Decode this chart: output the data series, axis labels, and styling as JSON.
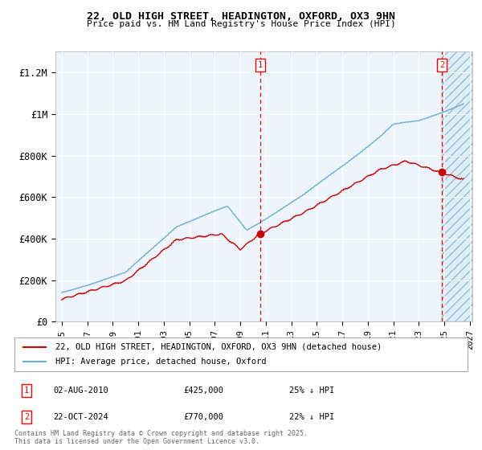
{
  "title": "22, OLD HIGH STREET, HEADINGTON, OXFORD, OX3 9HN",
  "subtitle": "Price paid vs. HM Land Registry's House Price Index (HPI)",
  "legend_line1": "22, OLD HIGH STREET, HEADINGTON, OXFORD, OX3 9HN (detached house)",
  "legend_line2": "HPI: Average price, detached house, Oxford",
  "footnote": "Contains HM Land Registry data © Crown copyright and database right 2025.\nThis data is licensed under the Open Government Licence v3.0.",
  "annotation1": {
    "num": "1",
    "date": "02-AUG-2010",
    "price": "£425,000",
    "hpi": "25% ↓ HPI",
    "x": 2010.58
  },
  "annotation2": {
    "num": "2",
    "date": "22-OCT-2024",
    "price": "£770,000",
    "hpi": "22% ↓ HPI",
    "x": 2024.81
  },
  "hpi_color": "#6baed6",
  "price_color": "#cc0000",
  "background_color": "#eef4fb",
  "ylim": [
    0,
    1300000
  ],
  "xlim": [
    1994.5,
    2027.2
  ],
  "yticks": [
    0,
    200000,
    400000,
    600000,
    800000,
    1000000,
    1200000
  ],
  "ytick_labels": [
    "£0",
    "£200K",
    "£400K",
    "£600K",
    "£800K",
    "£1M",
    "£1.2M"
  ],
  "xticks": [
    1995,
    1997,
    1999,
    2001,
    2003,
    2005,
    2007,
    2009,
    2011,
    2013,
    2015,
    2017,
    2019,
    2021,
    2023,
    2025,
    2027
  ]
}
